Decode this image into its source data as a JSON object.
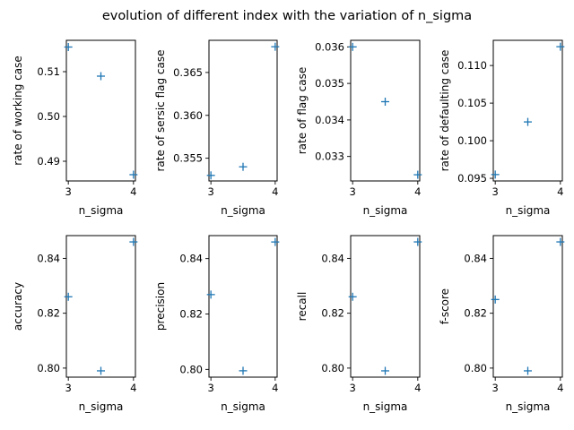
{
  "figure": {
    "suptitle": "evolution of different index with the variation of n_sigma",
    "marker_color": "#1f77b4"
  },
  "chart_data": [
    {
      "type": "scatter",
      "marker": "+",
      "x": [
        3.0,
        3.5,
        4.0
      ],
      "y": [
        0.5155,
        0.509,
        0.487
      ],
      "xlabel": "n_sigma",
      "ylabel": "rate of working case",
      "xlim": [
        2.97,
        4.03
      ],
      "ylim": [
        0.4856,
        0.517
      ],
      "xticks": [
        3,
        4
      ],
      "yticks": [
        0.49,
        0.5,
        0.51
      ],
      "ytick_labels": [
        "0.49",
        "0.50",
        "0.51"
      ]
    },
    {
      "type": "scatter",
      "marker": "+",
      "x": [
        3.0,
        3.5,
        4.0
      ],
      "y": [
        0.353,
        0.354,
        0.368
      ],
      "xlabel": "n_sigma",
      "ylabel": "rate of sersic flag case",
      "xlim": [
        2.97,
        4.03
      ],
      "ylim": [
        0.35235,
        0.36875
      ],
      "xticks": [
        3,
        4
      ],
      "yticks": [
        0.355,
        0.36,
        0.365
      ],
      "ytick_labels": [
        "0.355",
        "0.360",
        "0.365"
      ]
    },
    {
      "type": "scatter",
      "marker": "+",
      "x": [
        3.0,
        3.5,
        4.0
      ],
      "y": [
        0.036,
        0.0345,
        0.0325
      ],
      "xlabel": "n_sigma",
      "ylabel": "rate of flag case",
      "xlim": [
        2.97,
        4.03
      ],
      "ylim": [
        0.03233,
        0.03618
      ],
      "xticks": [
        3,
        4
      ],
      "yticks": [
        0.033,
        0.034,
        0.035,
        0.036
      ],
      "ytick_labels": [
        "0.033",
        "0.034",
        "0.035",
        "0.036"
      ]
    },
    {
      "type": "scatter",
      "marker": "+",
      "x": [
        3.0,
        3.5,
        4.0
      ],
      "y": [
        0.0955,
        0.1025,
        0.1125
      ],
      "xlabel": "n_sigma",
      "ylabel": "rate of defaulting case",
      "xlim": [
        2.97,
        4.03
      ],
      "ylim": [
        0.09465,
        0.11335
      ],
      "xticks": [
        3,
        4
      ],
      "yticks": [
        0.095,
        0.1,
        0.105,
        0.11
      ],
      "ytick_labels": [
        "0.095",
        "0.100",
        "0.105",
        "0.110"
      ]
    },
    {
      "type": "scatter",
      "marker": "+",
      "x": [
        3.0,
        3.5,
        4.0
      ],
      "y": [
        0.826,
        0.799,
        0.846
      ],
      "xlabel": "n_sigma",
      "ylabel": "accuracy",
      "xlim": [
        2.97,
        4.03
      ],
      "ylim": [
        0.7967,
        0.8483
      ],
      "xticks": [
        3,
        4
      ],
      "yticks": [
        0.8,
        0.82,
        0.84
      ],
      "ytick_labels": [
        "0.80",
        "0.82",
        "0.84"
      ]
    },
    {
      "type": "scatter",
      "marker": "+",
      "x": [
        3.0,
        3.5,
        4.0
      ],
      "y": [
        0.827,
        0.7995,
        0.846
      ],
      "xlabel": "n_sigma",
      "ylabel": "precision",
      "xlim": [
        2.97,
        4.03
      ],
      "ylim": [
        0.7972,
        0.8483
      ],
      "xticks": [
        3,
        4
      ],
      "yticks": [
        0.8,
        0.82,
        0.84
      ],
      "ytick_labels": [
        "0.80",
        "0.82",
        "0.84"
      ]
    },
    {
      "type": "scatter",
      "marker": "+",
      "x": [
        3.0,
        3.5,
        4.0
      ],
      "y": [
        0.826,
        0.799,
        0.846
      ],
      "xlabel": "n_sigma",
      "ylabel": "recall",
      "xlim": [
        2.97,
        4.03
      ],
      "ylim": [
        0.7967,
        0.8483
      ],
      "xticks": [
        3,
        4
      ],
      "yticks": [
        0.8,
        0.82,
        0.84
      ],
      "ytick_labels": [
        "0.80",
        "0.82",
        "0.84"
      ]
    },
    {
      "type": "scatter",
      "marker": "+",
      "x": [
        3.0,
        3.5,
        4.0
      ],
      "y": [
        0.825,
        0.799,
        0.846
      ],
      "xlabel": "n_sigma",
      "ylabel": "f-score",
      "xlim": [
        2.97,
        4.03
      ],
      "ylim": [
        0.7967,
        0.8483
      ],
      "xticks": [
        3,
        4
      ],
      "yticks": [
        0.8,
        0.82,
        0.84
      ],
      "ytick_labels": [
        "0.80",
        "0.82",
        "0.84"
      ]
    }
  ]
}
